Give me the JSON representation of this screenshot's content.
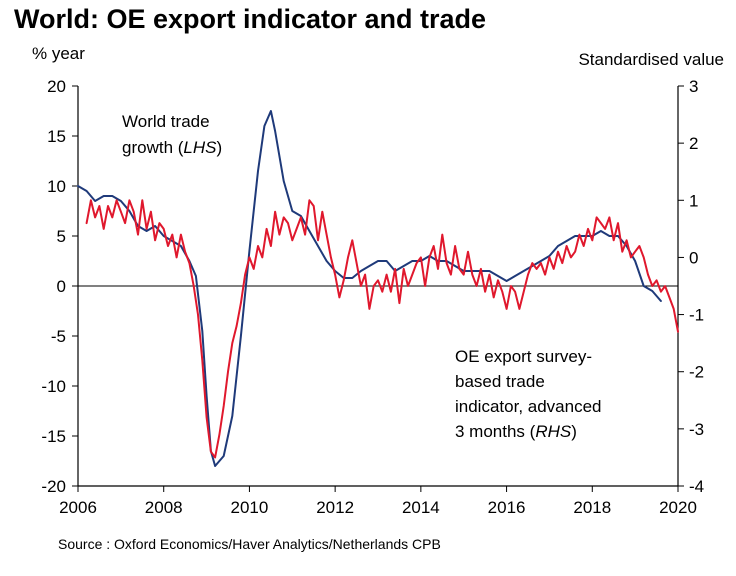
{
  "title": "World: OE export indicator and trade",
  "left_unit": "% year",
  "right_unit": "Standardised value",
  "source": "Source : Oxford Economics/Haver Analytics/Netherlands CPB",
  "annotations": {
    "trade": {
      "line1": "World trade",
      "line2_prefix": "growth (",
      "line2_italic": "LHS",
      "line2_suffix": ")"
    },
    "indicator": {
      "line1": "OE export survey-",
      "line2": "based trade",
      "line3": "indicator, advanced",
      "line4_prefix": "3 months (",
      "line4_italic": "RHS",
      "line4_suffix": ")"
    }
  },
  "colors": {
    "trade": "#1f3a7a",
    "indicator": "#e0182d",
    "axis": "#000000",
    "zero": "#000000"
  },
  "chart_data": {
    "type": "line",
    "title": "World: OE export indicator and trade",
    "xlabel": "",
    "ylabel": "% year",
    "y2label": "Standardised value",
    "xlim": [
      2006,
      2020
    ],
    "ylim": [
      -20,
      20
    ],
    "y2lim": [
      -4,
      3
    ],
    "x_ticks": [
      2006,
      2008,
      2010,
      2012,
      2014,
      2016,
      2018,
      2020
    ],
    "x_tick_labels": [
      "2006",
      "2008",
      "2010",
      "2012",
      "2014",
      "2016",
      "2018",
      "2020"
    ],
    "y_ticks": [
      20,
      15,
      10,
      5,
      0,
      -5,
      -10,
      -15,
      -20
    ],
    "y_tick_labels": [
      "20",
      "15",
      "10",
      "5",
      "0",
      "-5",
      "-10",
      "-15",
      "-20"
    ],
    "y2_ticks": [
      3,
      2,
      1,
      0,
      -1,
      -2,
      -3,
      -4
    ],
    "y2_tick_labels": [
      "3",
      "2",
      "1",
      "0",
      "-1",
      "-2",
      "-3",
      "-4"
    ],
    "series": [
      {
        "name": "World trade growth (LHS)",
        "axis": "left",
        "x": [
          2006.0,
          2006.2,
          2006.4,
          2006.6,
          2006.8,
          2007.0,
          2007.2,
          2007.4,
          2007.6,
          2007.8,
          2008.0,
          2008.2,
          2008.4,
          2008.6,
          2008.75,
          2008.9,
          2009.0,
          2009.1,
          2009.2,
          2009.3,
          2009.4,
          2009.6,
          2009.8,
          2010.0,
          2010.2,
          2010.35,
          2010.5,
          2010.6,
          2010.8,
          2011.0,
          2011.2,
          2011.4,
          2011.6,
          2011.8,
          2012.0,
          2012.2,
          2012.4,
          2012.6,
          2012.8,
          2013.0,
          2013.2,
          2013.4,
          2013.6,
          2013.8,
          2014.0,
          2014.2,
          2014.4,
          2014.6,
          2014.8,
          2015.0,
          2015.2,
          2015.4,
          2015.6,
          2015.8,
          2016.0,
          2016.2,
          2016.4,
          2016.6,
          2016.8,
          2017.0,
          2017.2,
          2017.4,
          2017.6,
          2017.8,
          2018.0,
          2018.2,
          2018.4,
          2018.6,
          2018.8,
          2019.0,
          2019.2,
          2019.4,
          2019.6
        ],
        "values": [
          10.0,
          9.5,
          8.5,
          9.0,
          9.0,
          8.5,
          7.5,
          6.0,
          5.5,
          6.0,
          5.0,
          4.5,
          4.0,
          2.5,
          1.0,
          -4.5,
          -11.0,
          -16.5,
          -18.0,
          -17.5,
          -17.0,
          -13.0,
          -5.0,
          3.5,
          11.5,
          16.0,
          17.5,
          15.5,
          10.5,
          7.5,
          7.0,
          5.5,
          4.0,
          2.5,
          1.5,
          0.8,
          0.8,
          1.5,
          2.0,
          2.5,
          2.5,
          1.5,
          2.0,
          2.5,
          2.5,
          3.0,
          2.5,
          2.5,
          2.0,
          1.5,
          1.5,
          1.5,
          1.5,
          1.0,
          0.5,
          1.0,
          1.5,
          2.0,
          2.5,
          3.0,
          4.0,
          4.5,
          5.0,
          5.0,
          5.0,
          5.5,
          5.0,
          5.0,
          4.0,
          2.5,
          0.0,
          -0.5,
          -1.5
        ]
      },
      {
        "name": "OE export survey-based trade indicator, advanced 3 months (RHS)",
        "axis": "right",
        "x": [
          2006.2,
          2006.3,
          2006.4,
          2006.5,
          2006.6,
          2006.7,
          2006.8,
          2006.9,
          2007.0,
          2007.1,
          2007.2,
          2007.3,
          2007.4,
          2007.5,
          2007.6,
          2007.7,
          2007.8,
          2007.9,
          2008.0,
          2008.1,
          2008.2,
          2008.3,
          2008.4,
          2008.5,
          2008.6,
          2008.7,
          2008.8,
          2008.9,
          2009.0,
          2009.1,
          2009.2,
          2009.3,
          2009.4,
          2009.5,
          2009.6,
          2009.7,
          2009.8,
          2009.9,
          2010.0,
          2010.1,
          2010.2,
          2010.3,
          2010.4,
          2010.5,
          2010.6,
          2010.7,
          2010.8,
          2010.9,
          2011.0,
          2011.1,
          2011.2,
          2011.3,
          2011.4,
          2011.5,
          2011.6,
          2011.7,
          2011.8,
          2011.9,
          2012.0,
          2012.1,
          2012.2,
          2012.3,
          2012.4,
          2012.5,
          2012.6,
          2012.7,
          2012.8,
          2012.9,
          2013.0,
          2013.1,
          2013.2,
          2013.3,
          2013.4,
          2013.5,
          2013.6,
          2013.7,
          2013.8,
          2013.9,
          2014.0,
          2014.1,
          2014.2,
          2014.3,
          2014.4,
          2014.5,
          2014.6,
          2014.7,
          2014.8,
          2014.9,
          2015.0,
          2015.1,
          2015.2,
          2015.3,
          2015.4,
          2015.5,
          2015.6,
          2015.7,
          2015.8,
          2015.9,
          2016.0,
          2016.1,
          2016.2,
          2016.3,
          2016.4,
          2016.5,
          2016.6,
          2016.7,
          2016.8,
          2016.9,
          2017.0,
          2017.1,
          2017.2,
          2017.3,
          2017.4,
          2017.5,
          2017.6,
          2017.7,
          2017.8,
          2017.9,
          2018.0,
          2018.1,
          2018.2,
          2018.3,
          2018.4,
          2018.5,
          2018.6,
          2018.7,
          2018.8,
          2018.9,
          2019.0,
          2019.1,
          2019.2,
          2019.3,
          2019.4,
          2019.5,
          2019.6,
          2019.7,
          2019.8,
          2019.9,
          2020.0
        ],
        "values": [
          0.6,
          1.0,
          0.7,
          0.9,
          0.5,
          0.9,
          0.7,
          1.0,
          0.8,
          0.6,
          1.0,
          0.8,
          0.4,
          1.0,
          0.5,
          0.8,
          0.3,
          0.6,
          0.5,
          0.2,
          0.4,
          0.0,
          0.4,
          0.1,
          -0.1,
          -0.5,
          -1.0,
          -1.8,
          -2.8,
          -3.4,
          -3.5,
          -3.1,
          -2.6,
          -2.0,
          -1.5,
          -1.2,
          -0.8,
          -0.3,
          0.0,
          -0.2,
          0.2,
          0.0,
          0.5,
          0.2,
          0.8,
          0.4,
          0.7,
          0.6,
          0.3,
          0.5,
          0.7,
          0.4,
          1.0,
          0.9,
          0.3,
          0.8,
          0.4,
          0.0,
          -0.3,
          -0.7,
          -0.4,
          0.0,
          0.3,
          -0.1,
          -0.5,
          -0.3,
          -0.9,
          -0.5,
          -0.4,
          -0.6,
          -0.3,
          -0.6,
          -0.2,
          -0.8,
          -0.2,
          -0.5,
          -0.3,
          -0.1,
          0.0,
          -0.5,
          0.0,
          0.2,
          -0.2,
          0.4,
          -0.1,
          -0.3,
          0.2,
          -0.2,
          -0.3,
          0.1,
          -0.3,
          -0.5,
          -0.2,
          -0.6,
          -0.3,
          -0.7,
          -0.4,
          -0.6,
          -0.9,
          -0.5,
          -0.6,
          -0.9,
          -0.6,
          -0.3,
          -0.1,
          -0.2,
          -0.1,
          -0.3,
          0.0,
          -0.2,
          0.1,
          -0.1,
          0.2,
          0.0,
          0.1,
          0.4,
          0.2,
          0.5,
          0.3,
          0.7,
          0.6,
          0.5,
          0.7,
          0.3,
          0.6,
          0.1,
          0.3,
          0.0,
          0.1,
          0.2,
          0.0,
          -0.3,
          -0.5,
          -0.4,
          -0.6,
          -0.5,
          -0.7,
          -0.9,
          -1.3
        ]
      }
    ]
  }
}
